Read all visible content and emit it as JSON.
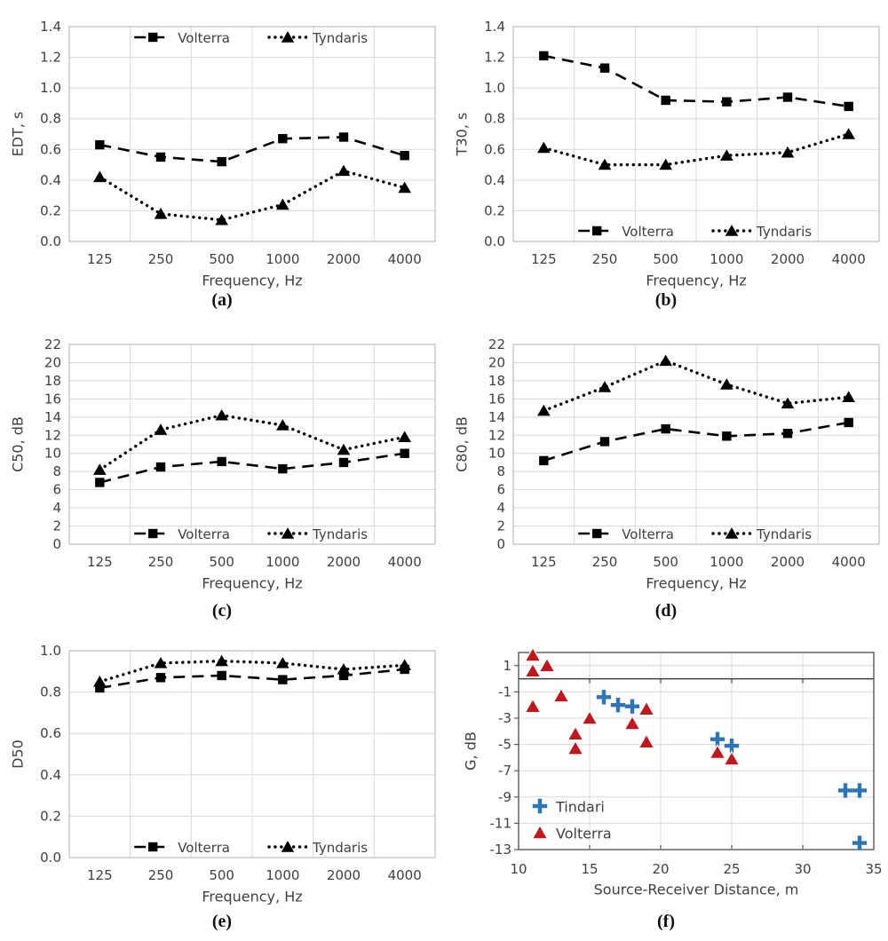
{
  "style": {
    "text_color": "#404040",
    "grid_color": "#d9d9d9",
    "frame_color": "#bfbfbf",
    "frame_dark_color": "#595959",
    "zero_line_color": "#404040",
    "series_black": "#000000",
    "tindari_blue": "#2e75b6",
    "volterra_red": "#c4161d",
    "background": "#ffffff"
  },
  "chart_data": [
    {
      "id": "a",
      "type": "line",
      "caption": "(a)",
      "xlabel": "Frequency, Hz",
      "ylabel": "EDT, s",
      "categories": [
        "125",
        "250",
        "500",
        "1000",
        "2000",
        "4000"
      ],
      "ylim": [
        0,
        1.4
      ],
      "ytick_step": 0.2,
      "ydecimals": 1,
      "grid": true,
      "legend_position": "top",
      "series": [
        {
          "name": "Volterra",
          "marker": "square",
          "line": "dashed",
          "values": [
            0.63,
            0.55,
            0.52,
            0.67,
            0.68,
            0.56
          ]
        },
        {
          "name": "Tyndaris",
          "marker": "triangle",
          "line": "dotted",
          "values": [
            0.42,
            0.18,
            0.14,
            0.24,
            0.46,
            0.35
          ]
        }
      ]
    },
    {
      "id": "b",
      "type": "line",
      "caption": "(b)",
      "xlabel": "Frequency, Hz",
      "ylabel": "T30, s",
      "categories": [
        "125",
        "250",
        "500",
        "1000",
        "2000",
        "4000"
      ],
      "ylim": [
        0,
        1.4
      ],
      "ytick_step": 0.2,
      "ydecimals": 1,
      "grid": true,
      "legend_position": "bottom",
      "series": [
        {
          "name": "Volterra",
          "marker": "square",
          "line": "dashed",
          "values": [
            1.21,
            1.13,
            0.92,
            0.91,
            0.94,
            0.88
          ]
        },
        {
          "name": "Tyndaris",
          "marker": "triangle",
          "line": "dotted",
          "values": [
            0.61,
            0.5,
            0.5,
            0.56,
            0.58,
            0.7
          ]
        }
      ]
    },
    {
      "id": "c",
      "type": "line",
      "caption": "(c)",
      "xlabel": "Frequency, Hz",
      "ylabel": "C50, dB",
      "categories": [
        "125",
        "250",
        "500",
        "1000",
        "2000",
        "4000"
      ],
      "ylim": [
        0,
        22
      ],
      "ytick_step": 2,
      "ydecimals": 0,
      "grid": true,
      "legend_position": "bottom",
      "series": [
        {
          "name": "Volterra",
          "marker": "square",
          "line": "dashed",
          "values": [
            6.8,
            8.5,
            9.1,
            8.3,
            9.0,
            10.0
          ]
        },
        {
          "name": "Tyndaris",
          "marker": "triangle",
          "line": "dotted",
          "values": [
            8.2,
            12.6,
            14.2,
            13.1,
            10.4,
            11.8
          ]
        }
      ]
    },
    {
      "id": "d",
      "type": "line",
      "caption": "(d)",
      "xlabel": "Frequency, Hz",
      "ylabel": "C80, dB",
      "categories": [
        "125",
        "250",
        "500",
        "1000",
        "2000",
        "4000"
      ],
      "ylim": [
        0,
        22
      ],
      "ytick_step": 2,
      "ydecimals": 0,
      "grid": true,
      "legend_position": "bottom",
      "series": [
        {
          "name": "Volterra",
          "marker": "square",
          "line": "dashed",
          "values": [
            9.2,
            11.3,
            12.7,
            11.9,
            12.2,
            13.4
          ]
        },
        {
          "name": "Tyndaris",
          "marker": "triangle",
          "line": "dotted",
          "values": [
            14.7,
            17.3,
            20.2,
            17.6,
            15.5,
            16.2
          ]
        }
      ]
    },
    {
      "id": "e",
      "type": "line",
      "caption": "(e)",
      "xlabel": "Frequency, Hz",
      "ylabel": "D50",
      "categories": [
        "125",
        "250",
        "500",
        "1000",
        "2000",
        "4000"
      ],
      "ylim": [
        0,
        1.0
      ],
      "ytick_step": 0.2,
      "ydecimals": 1,
      "grid": true,
      "legend_position": "bottom",
      "series": [
        {
          "name": "Volterra",
          "marker": "square",
          "line": "dashed",
          "values": [
            0.82,
            0.87,
            0.88,
            0.86,
            0.88,
            0.91
          ]
        },
        {
          "name": "Tyndaris",
          "marker": "triangle",
          "line": "dotted",
          "values": [
            0.85,
            0.94,
            0.95,
            0.94,
            0.91,
            0.93
          ]
        }
      ]
    },
    {
      "id": "f",
      "type": "scatter",
      "caption": "(f)",
      "xlabel": "Source-Receiver Distance, m",
      "ylabel": "G, dB",
      "xlim": [
        10,
        35
      ],
      "xticks": [
        10,
        15,
        20,
        25,
        30,
        35
      ],
      "ylim": [
        -13,
        2
      ],
      "yticks": [
        1,
        -1,
        -3,
        -5,
        -7,
        -9,
        -11,
        -13
      ],
      "zero_line": true,
      "grid": true,
      "legend_position": "inside-bottom-left",
      "series": [
        {
          "name": "Tindari",
          "marker": "plus",
          "color_key": "tindari_blue",
          "points": [
            [
              16,
              -1.4
            ],
            [
              17,
              -2.0
            ],
            [
              18,
              -2.1
            ],
            [
              24,
              -4.6
            ],
            [
              25,
              -5.1
            ],
            [
              33,
              -8.5
            ],
            [
              34,
              -8.5
            ],
            [
              34,
              -12.5
            ]
          ]
        },
        {
          "name": "Volterra",
          "marker": "triangle",
          "color_key": "volterra_red",
          "points": [
            [
              11,
              1.8
            ],
            [
              11,
              0.6
            ],
            [
              12,
              1.0
            ],
            [
              11,
              -2.1
            ],
            [
              13,
              -1.3
            ],
            [
              14,
              -4.2
            ],
            [
              14,
              -5.3
            ],
            [
              15,
              -3.0
            ],
            [
              18,
              -3.4
            ],
            [
              19,
              -2.3
            ],
            [
              19,
              -4.8
            ],
            [
              24,
              -5.6
            ],
            [
              25,
              -6.1
            ]
          ]
        }
      ]
    }
  ]
}
